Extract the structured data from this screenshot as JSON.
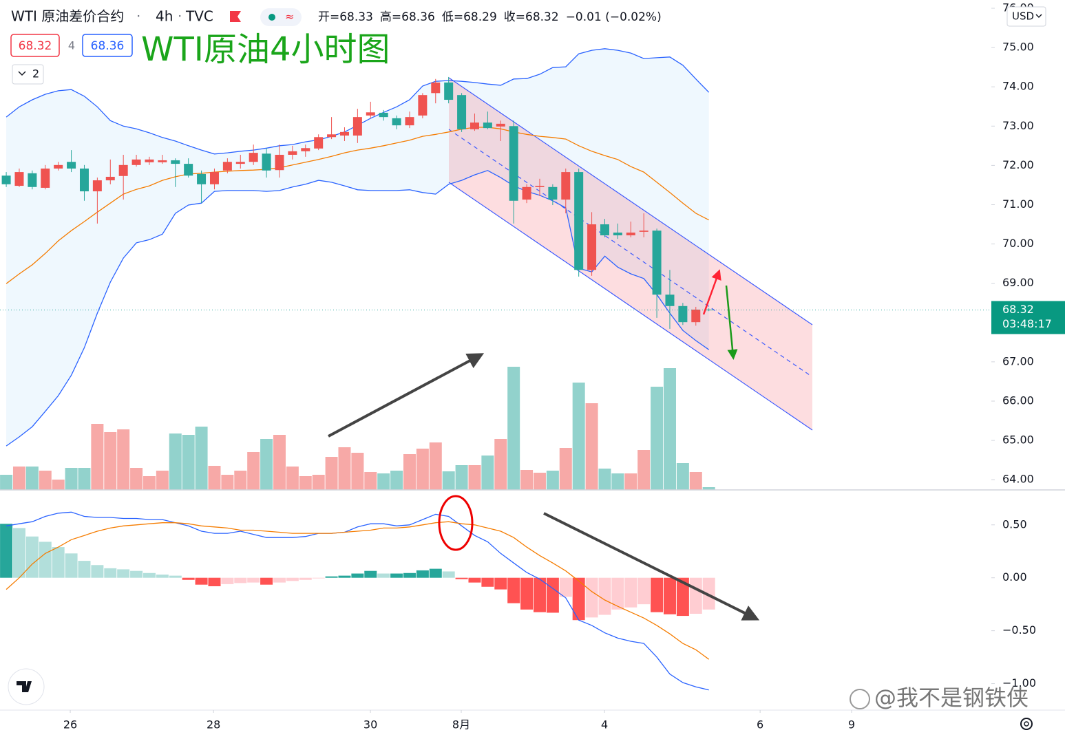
{
  "header": {
    "symbol": "WTI 原油差价合约",
    "interval": "4h",
    "source": "TVC",
    "ohlc": [
      "开=68.33",
      "高=68.36",
      "低=68.29",
      "收=68.32",
      "−0.01 (−0.02%)"
    ],
    "bid": "68.32",
    "spread": "4",
    "ask": "68.36",
    "indicators": "2"
  },
  "annotation": "WTI原油4小时图",
  "currency": "USD",
  "watermark": "@我不是钢铁侠",
  "countdown": "03:48:17",
  "chart_data": [
    {
      "type": "candlestick",
      "up_color": "#ef5350",
      "down_color": "#26a69a",
      "open": [
        71.74,
        71.48,
        71.8,
        71.43,
        71.92,
        72.09,
        71.92,
        71.34,
        71.62,
        71.73,
        72.01,
        72.08,
        72.08,
        72.13,
        72.04,
        71.78,
        71.52,
        71.87,
        72.04,
        72.09,
        72.3,
        71.88,
        72.27,
        72.36,
        72.43,
        72.72,
        72.76,
        72.76,
        73.27,
        73.34,
        73.2,
        73.02,
        73.27,
        73.84,
        74.11,
        73.79,
        72.92,
        73.09,
        72.99,
        73.0,
        71.13,
        71.45,
        71.45,
        71.13,
        71.83,
        69.34,
        70.5,
        70.29,
        70.22,
        70.31,
        70.34,
        68.71,
        68.42,
        68.01,
        68.33
      ],
      "high": [
        71.83,
        71.92,
        71.87,
        72.01,
        72.09,
        72.39,
        72.01,
        71.69,
        72.15,
        72.27,
        72.27,
        72.22,
        72.27,
        72.18,
        72.18,
        71.87,
        71.92,
        72.18,
        72.27,
        72.53,
        72.44,
        72.53,
        72.5,
        72.53,
        72.79,
        73.23,
        72.97,
        73.44,
        73.62,
        73.41,
        73.27,
        73.37,
        73.84,
        74.2,
        74.25,
        73.84,
        73.32,
        73.37,
        73.14,
        73.14,
        71.52,
        71.66,
        71.52,
        71.92,
        71.92,
        70.81,
        70.64,
        70.52,
        70.57,
        70.78,
        70.39,
        69.34,
        68.5,
        68.4,
        68.36
      ],
      "low": [
        71.45,
        71.45,
        71.39,
        71.39,
        71.87,
        71.83,
        71.1,
        70.52,
        71.52,
        71.13,
        71.97,
        72.01,
        72.04,
        71.45,
        71.69,
        71.04,
        71.39,
        71.8,
        71.92,
        72.01,
        71.69,
        71.69,
        72.15,
        72.22,
        72.39,
        72.67,
        72.62,
        72.57,
        73.2,
        73.14,
        72.92,
        72.95,
        73.2,
        73.58,
        73.58,
        72.85,
        72.88,
        72.92,
        72.62,
        70.52,
        71.04,
        71.22,
        70.99,
        70.78,
        69.17,
        69.19,
        70.17,
        70.13,
        70.17,
        70.17,
        68.12,
        67.84,
        67.94,
        67.92,
        68.29
      ],
      "close": [
        71.52,
        71.83,
        71.45,
        71.92,
        72.01,
        71.92,
        71.34,
        71.62,
        71.71,
        72.01,
        72.15,
        72.15,
        72.13,
        72.04,
        71.74,
        71.52,
        71.83,
        72.09,
        72.09,
        72.32,
        71.87,
        72.27,
        72.36,
        72.44,
        72.72,
        72.79,
        72.85,
        73.23,
        73.35,
        73.23,
        73.02,
        73.23,
        73.79,
        74.11,
        73.67,
        72.92,
        73.09,
        72.95,
        73.06,
        71.1,
        71.45,
        71.48,
        71.13,
        71.83,
        69.34,
        70.5,
        70.22,
        70.22,
        70.29,
        70.34,
        68.71,
        68.42,
        68.01,
        68.33,
        68.32
      ],
      "volume": [
        22,
        34,
        34,
        28,
        15,
        32,
        32,
        96,
        84,
        88,
        32,
        20,
        28,
        82,
        80,
        92,
        35,
        22,
        28,
        55,
        74,
        80,
        34,
        20,
        22,
        48,
        62,
        54,
        26,
        24,
        28,
        52,
        60,
        69,
        27,
        36,
        36,
        50,
        74,
        179,
        29,
        25,
        28,
        61,
        156,
        126,
        31,
        24,
        24,
        58,
        150,
        177,
        39,
        26,
        4
      ],
      "overlays": [
        {
          "color": "#2962ff",
          "values": [
            73.23,
            73.49,
            73.67,
            73.81,
            73.9,
            73.93,
            73.76,
            73.49,
            73.14,
            73.0,
            72.93,
            72.83,
            72.71,
            72.62,
            72.5,
            72.39,
            72.29,
            72.32,
            72.36,
            72.39,
            72.44,
            72.5,
            72.53,
            72.6,
            72.65,
            72.74,
            72.85,
            73.02,
            73.2,
            73.35,
            73.49,
            73.67,
            74.02,
            74.14,
            74.16,
            74.14,
            74.11,
            74.07,
            74.04,
            74.2,
            74.21,
            74.32,
            74.49,
            74.51,
            74.84,
            74.93,
            74.97,
            74.93,
            74.86,
            74.72,
            74.74,
            74.76,
            74.55,
            74.2,
            73.86
          ]
        },
        {
          "color": "#2962ff",
          "values": [
            64.86,
            65.09,
            65.35,
            65.74,
            66.14,
            66.66,
            67.36,
            68.24,
            69.03,
            69.64,
            70.03,
            70.11,
            70.25,
            70.78,
            70.99,
            71.04,
            71.34,
            71.36,
            71.36,
            71.36,
            71.34,
            71.36,
            71.45,
            71.52,
            71.62,
            71.57,
            71.48,
            71.38,
            71.36,
            71.36,
            71.36,
            71.38,
            71.31,
            71.27,
            71.52,
            71.62,
            71.76,
            71.87,
            71.69,
            71.48,
            71.34,
            71.24,
            71.1,
            70.92,
            69.38,
            69.29,
            69.69,
            69.41,
            69.24,
            69.12,
            68.71,
            68.24,
            67.8,
            67.54,
            67.31
          ]
        },
        {
          "color": "#f57c00",
          "values": [
            68.99,
            69.24,
            69.47,
            69.76,
            70.08,
            70.34,
            70.57,
            70.81,
            71.04,
            71.27,
            71.39,
            71.48,
            71.62,
            71.71,
            71.78,
            71.8,
            71.83,
            71.85,
            71.87,
            71.88,
            71.9,
            71.94,
            72.01,
            72.08,
            72.15,
            72.23,
            72.32,
            72.39,
            72.44,
            72.5,
            72.57,
            72.64,
            72.74,
            72.79,
            72.85,
            72.92,
            72.97,
            72.97,
            72.93,
            72.85,
            72.79,
            72.74,
            72.71,
            72.67,
            72.5,
            72.36,
            72.25,
            72.15,
            71.97,
            71.83,
            71.57,
            71.31,
            71.04,
            70.78,
            70.61
          ]
        }
      ],
      "last_price": 68.32,
      "xlim": [
        -0.48,
        75.71
      ],
      "xticks": [
        {
          "value": 4.92,
          "label": "26"
        },
        {
          "value": 15.93,
          "label": "28"
        },
        {
          "value": 27.99,
          "label": "30"
        },
        {
          "value": 34.97,
          "label": "8月"
        },
        {
          "value": 45.98,
          "label": "4"
        },
        {
          "value": 57.94,
          "label": "6"
        },
        {
          "value": 64.97,
          "label": "9"
        }
      ],
      "ylim": [
        63.74,
        76.21
      ],
      "yticks": [
        {
          "value": 64,
          "label": "64.00"
        },
        {
          "value": 65,
          "label": "65.00"
        },
        {
          "value": 66,
          "label": "66.00"
        },
        {
          "value": 67,
          "label": "67.00"
        },
        {
          "value": 69,
          "label": "69.00"
        },
        {
          "value": 70,
          "label": "70.00"
        },
        {
          "value": 71,
          "label": "71.00"
        },
        {
          "value": 72,
          "label": "72.00"
        },
        {
          "value": 73,
          "label": "73.00"
        },
        {
          "value": 74,
          "label": "74.00"
        },
        {
          "value": 75,
          "label": "75.00"
        },
        {
          "value": 76,
          "label": "76.00"
        }
      ]
    },
    {
      "type": "macd",
      "histogram": [
        0.51,
        0.47,
        0.39,
        0.34,
        0.29,
        0.23,
        0.16,
        0.12,
        0.09,
        0.08,
        0.065,
        0.045,
        0.03,
        0.02,
        -0.02,
        -0.065,
        -0.08,
        -0.06,
        -0.05,
        -0.045,
        -0.065,
        -0.045,
        -0.03,
        -0.02,
        -0.006,
        0.013,
        0.02,
        0.04,
        0.065,
        0.04,
        0.04,
        0.045,
        0.07,
        0.085,
        0.06,
        -0.013,
        -0.045,
        -0.085,
        -0.11,
        -0.24,
        -0.3,
        -0.325,
        -0.33,
        -0.18,
        -0.4,
        -0.375,
        -0.35,
        -0.3,
        -0.28,
        -0.25,
        -0.325,
        -0.345,
        -0.36,
        -0.34,
        -0.3
      ],
      "series": [
        {
          "color": "#2962ff",
          "values": [
            0.49,
            0.51,
            0.53,
            0.58,
            0.61,
            0.62,
            0.58,
            0.57,
            0.57,
            0.56,
            0.56,
            0.55,
            0.55,
            0.52,
            0.49,
            0.44,
            0.42,
            0.42,
            0.44,
            0.41,
            0.38,
            0.38,
            0.38,
            0.39,
            0.42,
            0.42,
            0.43,
            0.48,
            0.51,
            0.51,
            0.49,
            0.5,
            0.55,
            0.6,
            0.58,
            0.49,
            0.4,
            0.34,
            0.23,
            0.14,
            0.05,
            -0.013,
            -0.1,
            -0.19,
            -0.4,
            -0.45,
            -0.52,
            -0.57,
            -0.6,
            -0.62,
            -0.75,
            -0.91,
            -0.99,
            -1.03,
            -1.06
          ]
        },
        {
          "color": "#f57c00",
          "values": [
            -0.11,
            0.0,
            0.13,
            0.23,
            0.29,
            0.36,
            0.4,
            0.44,
            0.47,
            0.49,
            0.5,
            0.51,
            0.52,
            0.52,
            0.51,
            0.49,
            0.48,
            0.47,
            0.45,
            0.45,
            0.44,
            0.43,
            0.42,
            0.42,
            0.42,
            0.42,
            0.43,
            0.44,
            0.45,
            0.47,
            0.47,
            0.48,
            0.5,
            0.52,
            0.53,
            0.51,
            0.5,
            0.47,
            0.44,
            0.38,
            0.29,
            0.21,
            0.14,
            0.065,
            -0.03,
            -0.13,
            -0.21,
            -0.27,
            -0.325,
            -0.38,
            -0.45,
            -0.53,
            -0.62,
            -0.68,
            -0.77
          ]
        }
      ],
      "ylim": [
        -1.25,
        0.83
      ],
      "yticks": [
        {
          "value": 0.5,
          "label": "0.50"
        },
        {
          "value": 0,
          "label": "0.00"
        },
        {
          "value": -0.5,
          "label": "−0.50"
        },
        {
          "value": -1,
          "label": "−1.00"
        }
      ]
    }
  ]
}
